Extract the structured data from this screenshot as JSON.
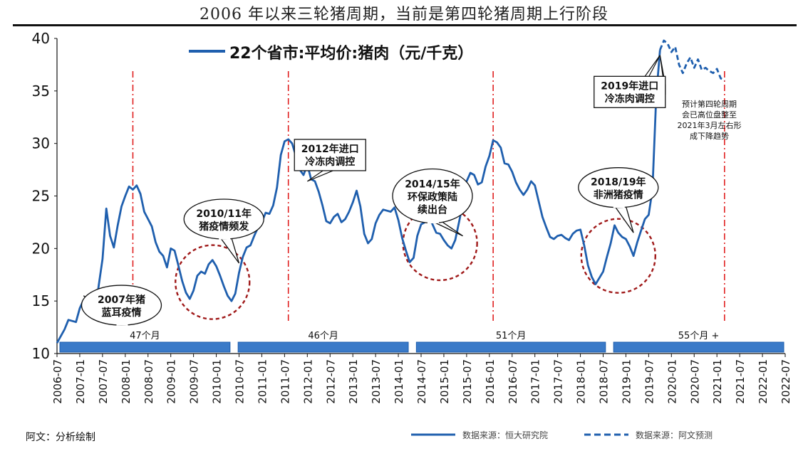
{
  "page": {
    "title": "2006 年以来三轮猪周期，当前是第四轮猪周期上行阶段",
    "author_note": "阿文：分析绘制"
  },
  "chart_data": {
    "type": "line",
    "title": "22个省市:平均价:猪肉（元/千克）",
    "ylim": [
      10,
      40
    ],
    "yticks": [
      "10",
      "15",
      "20",
      "25",
      "30",
      "35",
      "40"
    ],
    "x_range": [
      "2006-07",
      "2022-07"
    ],
    "xticks": [
      "2006-07",
      "2007-01",
      "2007-07",
      "2008-01",
      "2008-07",
      "2009-01",
      "2009-07",
      "2010-01",
      "2010-07",
      "2011-01",
      "2011-07",
      "2012-01",
      "2012-07",
      "2013-01",
      "2013-07",
      "2014-01",
      "2014-07",
      "2015-01",
      "2015-07",
      "2016-01",
      "2016-07",
      "2017-01",
      "2017-07",
      "2018-01",
      "2018-07",
      "2019-01",
      "2019-07",
      "2020-01",
      "2020-07",
      "2021-01",
      "2021-07",
      "2022-01",
      "2022-07"
    ],
    "colors": {
      "actual": "#1f5fae",
      "forecast": "#1f5fae",
      "vline": "#e02020",
      "circle": "#a01a1a",
      "bar": "#3a7ac8",
      "bar_edge": "#1f5fae"
    },
    "series": [
      {
        "name": "数据来源：恒大研究院",
        "style": "solid",
        "points": [
          [
            "2006-07",
            11.0
          ],
          [
            "2006-09",
            12.3
          ],
          [
            "2006-10",
            13.2
          ],
          [
            "2006-12",
            13.0
          ],
          [
            "2007-01",
            14.3
          ],
          [
            "2007-02",
            15.1
          ],
          [
            "2007-03",
            15.3
          ],
          [
            "2007-04",
            14.2
          ],
          [
            "2007-05",
            13.8
          ],
          [
            "2007-06",
            16.5
          ],
          [
            "2007-07",
            19.0
          ],
          [
            "2007-08",
            23.8
          ],
          [
            "2007-09",
            21.2
          ],
          [
            "2007-10",
            20.1
          ],
          [
            "2007-11",
            22.2
          ],
          [
            "2007-12",
            24.0
          ],
          [
            "2008-01",
            25.0
          ],
          [
            "2008-02",
            25.9
          ],
          [
            "2008-03",
            25.6
          ],
          [
            "2008-04",
            26.0
          ],
          [
            "2008-05",
            25.2
          ],
          [
            "2008-06",
            23.5
          ],
          [
            "2008-07",
            22.8
          ],
          [
            "2008-08",
            22.1
          ],
          [
            "2008-09",
            20.6
          ],
          [
            "2008-10",
            19.7
          ],
          [
            "2008-11",
            19.3
          ],
          [
            "2008-12",
            18.2
          ],
          [
            "2009-01",
            20.0
          ],
          [
            "2009-02",
            19.8
          ],
          [
            "2009-03",
            18.4
          ],
          [
            "2009-04",
            16.9
          ],
          [
            "2009-05",
            15.8
          ],
          [
            "2009-06",
            15.2
          ],
          [
            "2009-07",
            16.0
          ],
          [
            "2009-08",
            17.4
          ],
          [
            "2009-09",
            17.8
          ],
          [
            "2009-10",
            17.6
          ],
          [
            "2009-11",
            18.5
          ],
          [
            "2009-12",
            18.9
          ],
          [
            "2010-01",
            18.3
          ],
          [
            "2010-02",
            17.4
          ],
          [
            "2010-03",
            16.4
          ],
          [
            "2010-04",
            15.5
          ],
          [
            "2010-05",
            15.0
          ],
          [
            "2010-06",
            15.7
          ],
          [
            "2010-07",
            17.7
          ],
          [
            "2010-08",
            19.2
          ],
          [
            "2010-09",
            20.1
          ],
          [
            "2010-10",
            20.3
          ],
          [
            "2010-11",
            21.2
          ],
          [
            "2010-12",
            22.0
          ],
          [
            "2011-01",
            22.5
          ],
          [
            "2011-02",
            23.4
          ],
          [
            "2011-03",
            23.3
          ],
          [
            "2011-04",
            24.1
          ],
          [
            "2011-05",
            25.8
          ],
          [
            "2011-06",
            28.9
          ],
          [
            "2011-07",
            30.2
          ],
          [
            "2011-08",
            30.4
          ],
          [
            "2011-09",
            30.0
          ],
          [
            "2011-10",
            28.8
          ],
          [
            "2011-11",
            27.5
          ],
          [
            "2011-12",
            27.0
          ],
          [
            "2012-01",
            28.0
          ],
          [
            "2012-02",
            26.6
          ],
          [
            "2012-03",
            26.4
          ],
          [
            "2012-04",
            25.4
          ],
          [
            "2012-05",
            24.1
          ],
          [
            "2012-06",
            22.6
          ],
          [
            "2012-07",
            22.4
          ],
          [
            "2012-08",
            23.0
          ],
          [
            "2012-09",
            23.3
          ],
          [
            "2012-10",
            22.5
          ],
          [
            "2012-11",
            22.8
          ],
          [
            "2012-12",
            23.5
          ],
          [
            "2013-01",
            24.4
          ],
          [
            "2013-02",
            25.5
          ],
          [
            "2013-03",
            24.0
          ],
          [
            "2013-04",
            21.4
          ],
          [
            "2013-05",
            20.5
          ],
          [
            "2013-06",
            20.9
          ],
          [
            "2013-07",
            22.4
          ],
          [
            "2013-08",
            23.2
          ],
          [
            "2013-09",
            23.7
          ],
          [
            "2013-10",
            23.6
          ],
          [
            "2013-11",
            23.5
          ],
          [
            "2013-12",
            23.9
          ],
          [
            "2014-01",
            22.7
          ],
          [
            "2014-02",
            21.0
          ],
          [
            "2014-03",
            19.8
          ],
          [
            "2014-04",
            18.7
          ],
          [
            "2014-05",
            19.1
          ],
          [
            "2014-06",
            21.2
          ],
          [
            "2014-07",
            22.3
          ],
          [
            "2014-08",
            22.5
          ],
          [
            "2014-09",
            23.2
          ],
          [
            "2014-10",
            22.3
          ],
          [
            "2014-11",
            21.5
          ],
          [
            "2014-12",
            21.4
          ],
          [
            "2015-01",
            20.8
          ],
          [
            "2015-02",
            20.3
          ],
          [
            "2015-03",
            20.0
          ],
          [
            "2015-04",
            20.8
          ],
          [
            "2015-05",
            22.5
          ],
          [
            "2015-06",
            24.3
          ],
          [
            "2015-07",
            26.4
          ],
          [
            "2015-08",
            27.2
          ],
          [
            "2015-09",
            27.0
          ],
          [
            "2015-10",
            26.1
          ],
          [
            "2015-11",
            26.3
          ],
          [
            "2015-12",
            27.8
          ],
          [
            "2016-01",
            28.8
          ],
          [
            "2016-02",
            30.3
          ],
          [
            "2016-03",
            30.1
          ],
          [
            "2016-04",
            29.6
          ],
          [
            "2016-05",
            28.1
          ],
          [
            "2016-06",
            28.0
          ],
          [
            "2016-07",
            27.3
          ],
          [
            "2016-08",
            26.3
          ],
          [
            "2016-09",
            25.6
          ],
          [
            "2016-10",
            25.1
          ],
          [
            "2016-11",
            25.6
          ],
          [
            "2016-12",
            26.4
          ],
          [
            "2017-01",
            26.0
          ],
          [
            "2017-02",
            24.5
          ],
          [
            "2017-03",
            23.0
          ],
          [
            "2017-04",
            22.0
          ],
          [
            "2017-05",
            21.1
          ],
          [
            "2017-06",
            20.9
          ],
          [
            "2017-07",
            21.2
          ],
          [
            "2017-08",
            21.3
          ],
          [
            "2017-09",
            21.0
          ],
          [
            "2017-10",
            20.8
          ],
          [
            "2017-11",
            21.4
          ],
          [
            "2017-12",
            21.7
          ],
          [
            "2018-01",
            21.8
          ],
          [
            "2018-02",
            20.3
          ],
          [
            "2018-03",
            18.4
          ],
          [
            "2018-04",
            17.3
          ],
          [
            "2018-05",
            16.6
          ],
          [
            "2018-06",
            17.2
          ],
          [
            "2018-07",
            17.8
          ],
          [
            "2018-08",
            19.2
          ],
          [
            "2018-09",
            20.5
          ],
          [
            "2018-10",
            22.2
          ],
          [
            "2018-11",
            21.5
          ],
          [
            "2018-12",
            21.1
          ],
          [
            "2019-01",
            20.9
          ],
          [
            "2019-02",
            20.2
          ],
          [
            "2019-03",
            19.3
          ],
          [
            "2019-04",
            20.6
          ],
          [
            "2019-05",
            21.7
          ],
          [
            "2019-06",
            22.8
          ],
          [
            "2019-07",
            23.2
          ],
          [
            "2019-08",
            25.6
          ],
          [
            "2019-09",
            34.5
          ],
          [
            "2019-10",
            38.9
          ]
        ]
      },
      {
        "name": "数据来源：阿文预测",
        "style": "dashed",
        "points": [
          [
            "2019-10",
            38.9
          ],
          [
            "2019-11",
            39.8
          ],
          [
            "2019-12",
            39.5
          ],
          [
            "2020-01",
            38.7
          ],
          [
            "2020-02",
            39.2
          ],
          [
            "2020-03",
            37.5
          ],
          [
            "2020-04",
            36.7
          ],
          [
            "2020-05",
            37.6
          ],
          [
            "2020-06",
            38.2
          ],
          [
            "2020-07",
            37.2
          ],
          [
            "2020-08",
            38.0
          ],
          [
            "2020-09",
            37.0
          ],
          [
            "2020-10",
            37.2
          ],
          [
            "2020-11",
            36.9
          ],
          [
            "2020-12",
            36.7
          ],
          [
            "2021-01",
            37.1
          ],
          [
            "2021-02",
            36.2
          ],
          [
            "2021-03",
            36.0
          ]
        ]
      }
    ],
    "vlines": [
      "2008-03",
      "2011-08",
      "2016-02",
      "2021-03"
    ],
    "cycles": [
      {
        "label": "47个月",
        "from": "2006-07",
        "to": "2010-05"
      },
      {
        "label": "46个月",
        "from": "2010-06",
        "to": "2014-04"
      },
      {
        "label": "51个月",
        "from": "2014-05",
        "to": "2018-08"
      },
      {
        "label": "55个月  +",
        "from": "2018-09",
        "to": "2022-07"
      }
    ],
    "circles": [
      {
        "cx": "2009-12",
        "cy": 16.8
      },
      {
        "cx": "2014-12",
        "cy": 20.5
      },
      {
        "cx": "2018-11",
        "cy": 19.3
      }
    ],
    "callouts": [
      {
        "lines": [
          "2007年猪",
          "蓝耳疫情"
        ],
        "cx": "2007-12",
        "cy": 14.6,
        "tx": "2007-02",
        "ty": 15.5
      },
      {
        "lines": [
          "2010/11年",
          "猪疫情频发"
        ],
        "cx": "2010-03",
        "cy": 22.8,
        "tx": "2010-07",
        "ty": 18.6
      },
      {
        "lines": [
          "2014/15年",
          "环保政策陆",
          "续出台"
        ],
        "cx": "2014-10",
        "cy": 25.0,
        "tx": "2015-06",
        "ty": 21.2
      },
      {
        "lines": [
          "2018/19年",
          "非洲猪疫情"
        ],
        "cx": "2018-11",
        "cy": 25.8,
        "tx": "2019-03",
        "ty": 21.5
      }
    ],
    "boxes": [
      {
        "lines": [
          "2012年进口",
          "冷冻肉调控"
        ],
        "cx": "2012-07",
        "cy": 28.9,
        "tx": "2012-01",
        "ty": 26.4
      },
      {
        "lines": [
          "2019年进口",
          "冷冻肉调控"
        ],
        "cx": "2019-02",
        "cy": 34.9,
        "tx": "2019-10",
        "ty": 38.4
      }
    ],
    "notes": [
      {
        "lines": [
          "预计第四轮周期",
          "会已高位盘整至",
          "2021年3月左右形",
          "成下降趋势"
        ],
        "cx": "2020-11",
        "y": 33.5
      }
    ],
    "legend_bottom": [
      {
        "label": "数据来源：恒大研究院",
        "style": "solid"
      },
      {
        "label": "数据来源：阿文预测",
        "style": "dashed"
      }
    ]
  }
}
